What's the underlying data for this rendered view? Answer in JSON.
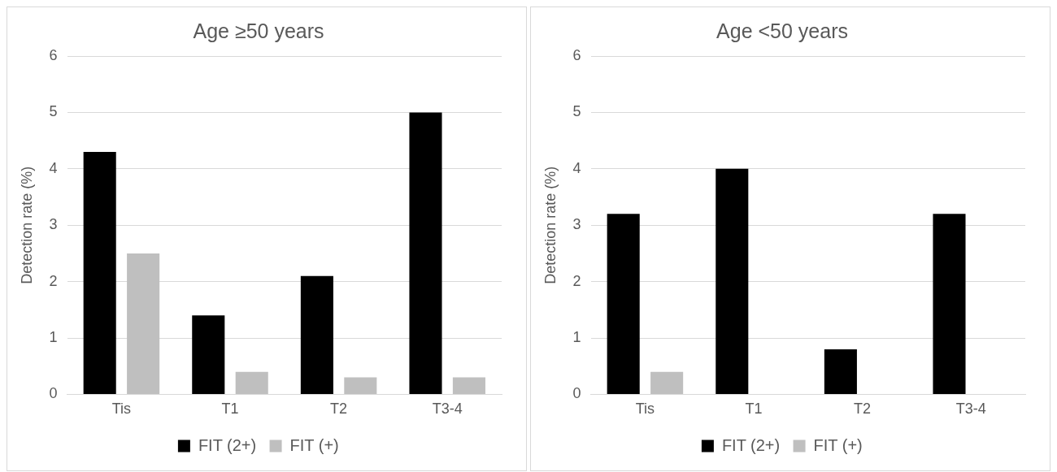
{
  "chart_data": [
    {
      "type": "bar",
      "title": "Age ≥50 years",
      "ylabel": "Detection rate (%)",
      "categories": [
        "Tis",
        "T1",
        "T2",
        "T3-4"
      ],
      "series": [
        {
          "name": "FIT (2+)",
          "color": "#000000",
          "values": [
            4.3,
            1.4,
            2.1,
            5.0
          ]
        },
        {
          "name": "FIT (+)",
          "color": "#bfbfbf",
          "values": [
            2.5,
            0.4,
            0.3,
            0.3
          ]
        }
      ],
      "ylim": [
        0,
        6
      ],
      "yticks": [
        0,
        1,
        2,
        3,
        4,
        5,
        6
      ],
      "grid": "y",
      "legend": "bottom"
    },
    {
      "type": "bar",
      "title": "Age <50 years",
      "ylabel": "Detection rate (%)",
      "categories": [
        "Tis",
        "T1",
        "T2",
        "T3-4"
      ],
      "series": [
        {
          "name": "FIT (2+)",
          "color": "#000000",
          "values": [
            3.2,
            4.0,
            0.8,
            3.2
          ]
        },
        {
          "name": "FIT (+)",
          "color": "#bfbfbf",
          "values": [
            0.4,
            0,
            0,
            0
          ]
        }
      ],
      "ylim": [
        0,
        6
      ],
      "yticks": [
        0,
        1,
        2,
        3,
        4,
        5,
        6
      ],
      "grid": "y",
      "legend": "bottom"
    }
  ]
}
